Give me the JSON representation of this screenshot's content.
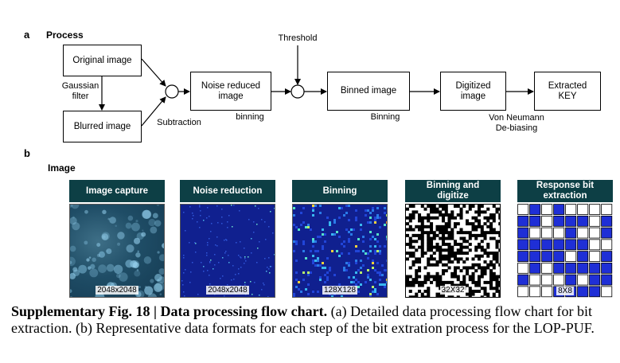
{
  "panel_a": {
    "letter": "a",
    "title": "Process",
    "boxes": {
      "original": "Original image",
      "blurred": "Blurred image",
      "noise": "Noise reduced\nimage",
      "binned": "Binned image",
      "digitized": "Digitized\nimage",
      "key": "Extracted\nKEY"
    },
    "labels": {
      "gaussian": "Gaussian\nfilter",
      "subtraction": "Subtraction",
      "threshold": "Threshold",
      "binning1": "binning",
      "binning2": "Binning",
      "vonneumann": "Von Neumann\nDe-biasing"
    }
  },
  "panel_b": {
    "letter": "b",
    "title": "Image",
    "steps": [
      {
        "header": "Image capture",
        "dims": "2048x2048"
      },
      {
        "header": "Noise reduction",
        "dims": "2048x2048"
      },
      {
        "header": "Binning",
        "dims": "128X128"
      },
      {
        "header": "Binning and\ndigitize",
        "dims": "32X32"
      },
      {
        "header": "Response bit\nextraction",
        "dims": "8X8"
      }
    ]
  },
  "caption": {
    "lead": "Supplementary Fig. 18 | Data processing flow chart.",
    "text": " (a) Detailed data processing flow chart for bit extraction. (b) Representative data formats for each step of the bit extration process for the LOP-PUF."
  },
  "colors": {
    "header_bg": "#0d3f45",
    "bit_one": "#1f2fd6",
    "bit_zero": "#ffffff"
  }
}
